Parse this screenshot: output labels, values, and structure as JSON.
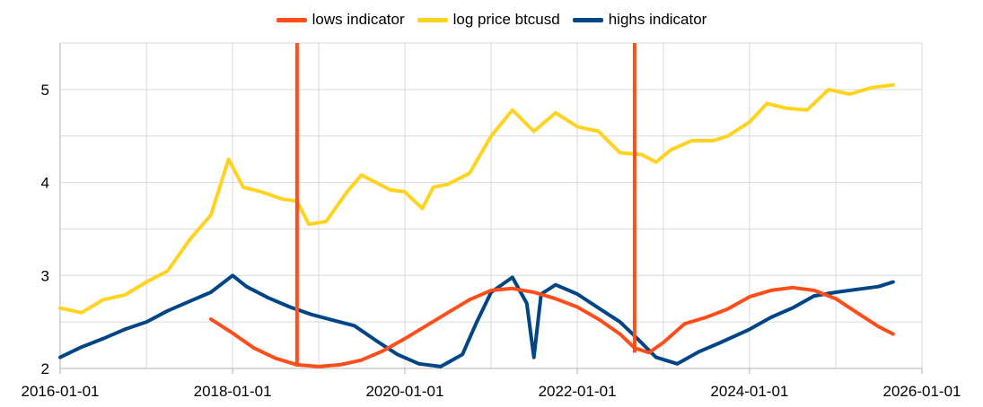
{
  "chart_data": {
    "type": "line",
    "title": "",
    "xlabel": "",
    "ylabel": "",
    "ylim": [
      2,
      5.5
    ],
    "xlim": [
      "2016-01-01",
      "2026-01-01"
    ],
    "yticks": [
      "2",
      "3",
      "4",
      "5"
    ],
    "xticks": [
      "2016-01-01",
      "2018-01-01",
      "2020-01-01",
      "2022-01-01",
      "2024-01-01",
      "2026-01-01"
    ],
    "grid": true,
    "legend_position": "top-center",
    "series": [
      {
        "name": "lows indicator",
        "color": "#ff4e1a",
        "points": [
          [
            "2017-10-01",
            2.53
          ],
          [
            "2018-01-01",
            2.38
          ],
          [
            "2018-04-01",
            2.22
          ],
          [
            "2018-07-01",
            2.11
          ],
          [
            "2018-10-01",
            2.04
          ],
          [
            "2019-01-01",
            2.02
          ],
          [
            "2019-04-01",
            2.04
          ],
          [
            "2019-07-01",
            2.09
          ],
          [
            "2019-10-01",
            2.19
          ],
          [
            "2020-01-01",
            2.32
          ],
          [
            "2020-04-01",
            2.46
          ],
          [
            "2020-07-01",
            2.6
          ],
          [
            "2020-10-01",
            2.74
          ],
          [
            "2021-01-01",
            2.84
          ],
          [
            "2021-04-01",
            2.86
          ],
          [
            "2021-07-01",
            2.82
          ],
          [
            "2021-10-01",
            2.75
          ],
          [
            "2022-01-01",
            2.66
          ],
          [
            "2022-04-01",
            2.53
          ],
          [
            "2022-07-01",
            2.37
          ],
          [
            "2022-09-01",
            2.22
          ],
          [
            "2022-11-01",
            2.17
          ],
          [
            "2023-01-01",
            2.28
          ],
          [
            "2023-04-01",
            2.48
          ],
          [
            "2023-07-01",
            2.55
          ],
          [
            "2023-10-01",
            2.64
          ],
          [
            "2024-01-01",
            2.77
          ],
          [
            "2024-04-01",
            2.84
          ],
          [
            "2024-07-01",
            2.87
          ],
          [
            "2024-10-01",
            2.84
          ],
          [
            "2025-01-01",
            2.75
          ],
          [
            "2025-04-01",
            2.6
          ],
          [
            "2025-07-01",
            2.45
          ],
          [
            "2025-09-01",
            2.37
          ]
        ],
        "vertical_markers": [
          {
            "date": "2018-10-01",
            "from": 2.02,
            "to": 5.5
          },
          {
            "date": "2022-09-01",
            "from": 2.17,
            "to": 5.5
          }
        ]
      },
      {
        "name": "log price btcusd",
        "color": "#ffd320",
        "points": [
          [
            "2016-01-01",
            2.65
          ],
          [
            "2016-04-01",
            2.6
          ],
          [
            "2016-07-01",
            2.74
          ],
          [
            "2016-10-01",
            2.79
          ],
          [
            "2017-01-01",
            2.93
          ],
          [
            "2017-04-01",
            3.05
          ],
          [
            "2017-07-01",
            3.38
          ],
          [
            "2017-10-01",
            3.65
          ],
          [
            "2017-12-15",
            4.25
          ],
          [
            "2018-02-15",
            3.95
          ],
          [
            "2018-05-01",
            3.9
          ],
          [
            "2018-08-01",
            3.82
          ],
          [
            "2018-10-01",
            3.8
          ],
          [
            "2018-11-20",
            3.55
          ],
          [
            "2019-02-01",
            3.58
          ],
          [
            "2019-05-01",
            3.9
          ],
          [
            "2019-07-01",
            4.08
          ],
          [
            "2019-09-01",
            4.0
          ],
          [
            "2019-11-01",
            3.92
          ],
          [
            "2020-01-01",
            3.9
          ],
          [
            "2020-03-15",
            3.72
          ],
          [
            "2020-05-01",
            3.95
          ],
          [
            "2020-07-01",
            3.98
          ],
          [
            "2020-10-01",
            4.1
          ],
          [
            "2021-01-01",
            4.5
          ],
          [
            "2021-04-01",
            4.78
          ],
          [
            "2021-07-01",
            4.55
          ],
          [
            "2021-10-01",
            4.75
          ],
          [
            "2022-01-01",
            4.6
          ],
          [
            "2022-04-01",
            4.55
          ],
          [
            "2022-07-01",
            4.32
          ],
          [
            "2022-10-01",
            4.3
          ],
          [
            "2022-12-01",
            4.22
          ],
          [
            "2023-02-01",
            4.35
          ],
          [
            "2023-05-01",
            4.45
          ],
          [
            "2023-08-01",
            4.45
          ],
          [
            "2023-10-01",
            4.5
          ],
          [
            "2024-01-01",
            4.65
          ],
          [
            "2024-03-15",
            4.85
          ],
          [
            "2024-06-01",
            4.8
          ],
          [
            "2024-09-01",
            4.78
          ],
          [
            "2024-12-01",
            5.0
          ],
          [
            "2025-03-01",
            4.95
          ],
          [
            "2025-06-01",
            5.02
          ],
          [
            "2025-09-01",
            5.05
          ]
        ]
      },
      {
        "name": "highs indicator",
        "color": "#004586",
        "points": [
          [
            "2016-01-01",
            2.12
          ],
          [
            "2016-04-01",
            2.23
          ],
          [
            "2016-07-01",
            2.32
          ],
          [
            "2016-10-01",
            2.42
          ],
          [
            "2017-01-01",
            2.5
          ],
          [
            "2017-04-01",
            2.62
          ],
          [
            "2017-07-01",
            2.72
          ],
          [
            "2017-10-01",
            2.82
          ],
          [
            "2018-01-01",
            3.0
          ],
          [
            "2018-03-01",
            2.88
          ],
          [
            "2018-06-01",
            2.76
          ],
          [
            "2018-09-01",
            2.66
          ],
          [
            "2018-12-01",
            2.58
          ],
          [
            "2019-03-01",
            2.52
          ],
          [
            "2019-06-01",
            2.46
          ],
          [
            "2019-09-01",
            2.3
          ],
          [
            "2019-12-01",
            2.15
          ],
          [
            "2020-03-01",
            2.05
          ],
          [
            "2020-06-01",
            2.02
          ],
          [
            "2020-09-01",
            2.15
          ],
          [
            "2020-11-01",
            2.5
          ],
          [
            "2021-01-01",
            2.82
          ],
          [
            "2021-04-01",
            2.98
          ],
          [
            "2021-06-01",
            2.7
          ],
          [
            "2021-07-01",
            2.12
          ],
          [
            "2021-08-01",
            2.8
          ],
          [
            "2021-10-01",
            2.9
          ],
          [
            "2022-01-01",
            2.8
          ],
          [
            "2022-04-01",
            2.65
          ],
          [
            "2022-07-01",
            2.5
          ],
          [
            "2022-09-01",
            2.35
          ],
          [
            "2022-12-01",
            2.12
          ],
          [
            "2023-03-01",
            2.05
          ],
          [
            "2023-06-01",
            2.18
          ],
          [
            "2023-09-01",
            2.28
          ],
          [
            "2024-01-01",
            2.42
          ],
          [
            "2024-04-01",
            2.55
          ],
          [
            "2024-07-01",
            2.65
          ],
          [
            "2024-10-01",
            2.78
          ],
          [
            "2025-01-01",
            2.82
          ],
          [
            "2025-04-01",
            2.85
          ],
          [
            "2025-07-01",
            2.88
          ],
          [
            "2025-09-01",
            2.93
          ]
        ]
      }
    ]
  }
}
